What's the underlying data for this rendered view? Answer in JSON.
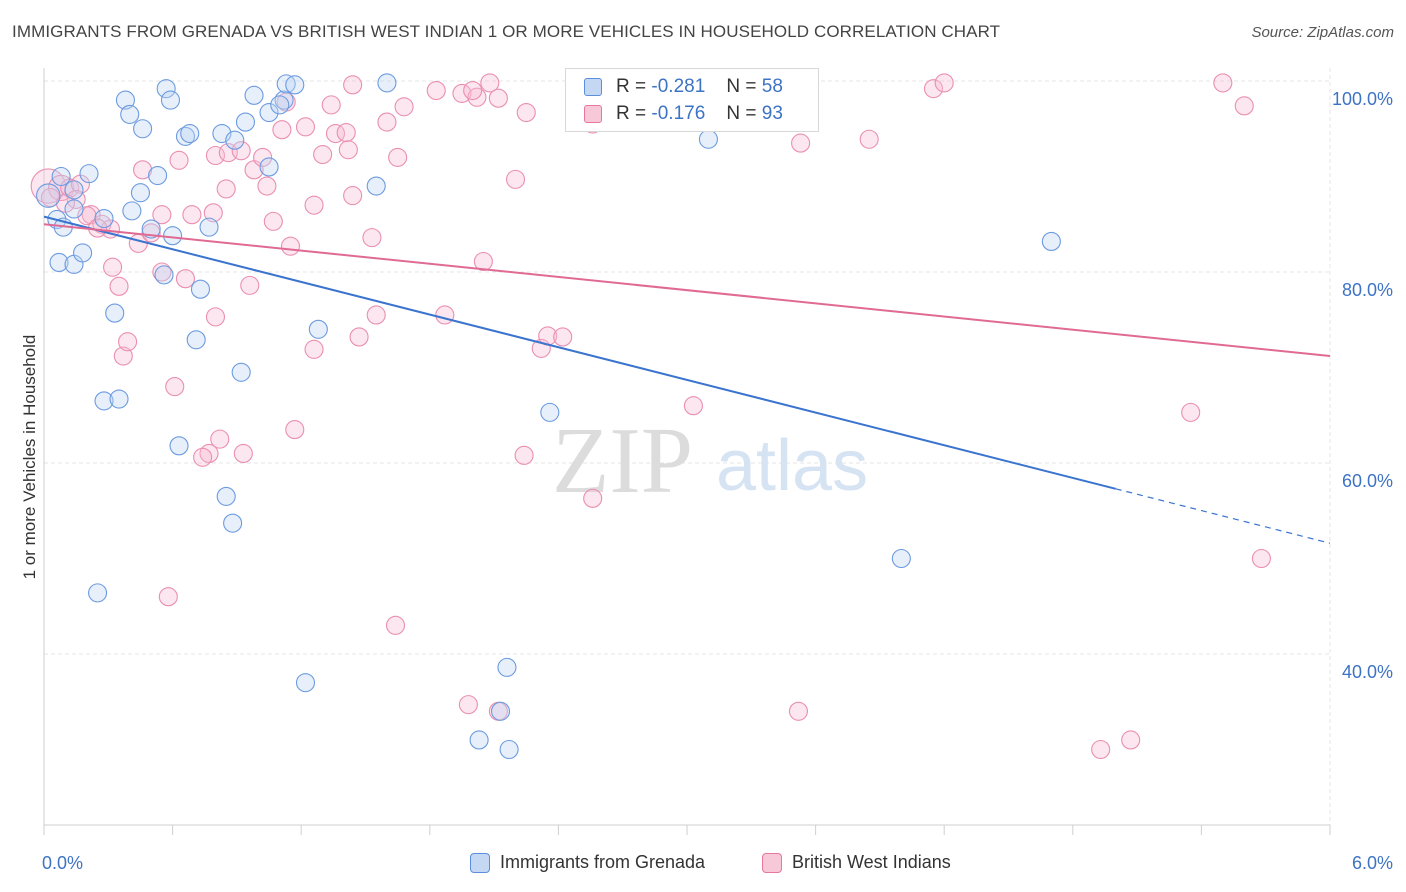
{
  "title": "IMMIGRANTS FROM GRENADA VS BRITISH WEST INDIAN 1 OR MORE VEHICLES IN HOUSEHOLD CORRELATION CHART",
  "source": "Source: ZipAtlas.com",
  "watermark": {
    "zip": "ZIP",
    "atlas": "atlas"
  },
  "stats": [
    {
      "r_label": "R =",
      "r_value": "-0.281",
      "n_label": "N =",
      "n_value": "58"
    },
    {
      "r_label": "R =",
      "r_value": "-0.176",
      "n_label": "N =",
      "n_value": "93"
    }
  ],
  "colors": {
    "blue": "#5b8fdd",
    "blue_fill": "#c5d8f3",
    "blue_line": "#3a74cf",
    "pink": "#e8779f",
    "pink_fill": "#f7c8d8",
    "pink_line": "#e06a94",
    "tick": "#3d73c4"
  },
  "chart_data": {
    "type": "scatter",
    "xlabel": "",
    "ylabel": "1 or more Vehicles in Household",
    "x_range": [
      0.0,
      6.0
    ],
    "y_range": [
      22,
      102
    ],
    "x_tick_labels": [
      "0.0%",
      "6.0%"
    ],
    "y_ticks": [
      100,
      80,
      60,
      40
    ],
    "y_tick_labels": [
      "100.0%",
      "80.0%",
      "60.0%",
      "40.0%"
    ],
    "grid": true,
    "legend_position": "bottom-center",
    "series": [
      {
        "name": "Immigrants from Grenada",
        "color": "#5b8fdd",
        "trend": {
          "x0": 0.0,
          "y0": 85.8,
          "x1": 5.0,
          "y1": 57.3,
          "dash_to_x": 6.0,
          "dash_to_y": 51.6
        },
        "points": [
          [
            0.02,
            88.0,
            1.3
          ],
          [
            0.06,
            85.5,
            1.0
          ],
          [
            0.09,
            84.7,
            1.0
          ],
          [
            0.14,
            86.6,
            1.0
          ],
          [
            0.08,
            90.0,
            1.0
          ],
          [
            0.14,
            88.6,
            1.0
          ],
          [
            0.21,
            90.3,
            1.0
          ],
          [
            0.07,
            81.0,
            1.0
          ],
          [
            0.14,
            80.8,
            1.0
          ],
          [
            0.18,
            82.0,
            1.0
          ],
          [
            0.28,
            85.6,
            1.0
          ],
          [
            0.38,
            98.0,
            1.0
          ],
          [
            0.4,
            96.5,
            1.0
          ],
          [
            0.46,
            95.0,
            1.0
          ],
          [
            0.57,
            99.2,
            1.0
          ],
          [
            0.59,
            98.0,
            1.0
          ],
          [
            0.66,
            94.2,
            1.0
          ],
          [
            0.68,
            94.5,
            1.0
          ],
          [
            0.83,
            94.5,
            1.0
          ],
          [
            0.89,
            93.8,
            1.0
          ],
          [
            0.94,
            95.7,
            1.0
          ],
          [
            0.98,
            98.5,
            1.0
          ],
          [
            1.05,
            96.7,
            1.0
          ],
          [
            1.12,
            98.0,
            1.0
          ],
          [
            1.13,
            99.7,
            1.0
          ],
          [
            1.17,
            99.6,
            1.0
          ],
          [
            0.53,
            90.1,
            1.0
          ],
          [
            0.45,
            88.3,
            1.0
          ],
          [
            0.41,
            86.4,
            1.0
          ],
          [
            0.5,
            84.5,
            1.0
          ],
          [
            0.6,
            83.8,
            1.0
          ],
          [
            0.77,
            84.7,
            1.0
          ],
          [
            0.56,
            79.7,
            1.0
          ],
          [
            0.73,
            78.2,
            1.0
          ],
          [
            0.33,
            75.7,
            1.0
          ],
          [
            0.71,
            72.9,
            1.0
          ],
          [
            0.92,
            69.5,
            1.0
          ],
          [
            0.28,
            66.5,
            1.0
          ],
          [
            0.35,
            66.7,
            1.0
          ],
          [
            1.05,
            91.0,
            1.0
          ],
          [
            1.6,
            99.8,
            1.0
          ],
          [
            1.55,
            89.0,
            1.0
          ],
          [
            1.28,
            74.0,
            1.0
          ],
          [
            0.63,
            61.8,
            1.0
          ],
          [
            0.85,
            56.5,
            1.0
          ],
          [
            0.88,
            53.7,
            1.0
          ],
          [
            0.25,
            46.4,
            1.0
          ],
          [
            1.22,
            37.0,
            1.0
          ],
          [
            2.16,
            38.6,
            1.0
          ],
          [
            2.13,
            34.0,
            1.0
          ],
          [
            2.03,
            31.0,
            1.0
          ],
          [
            2.17,
            30.0,
            1.0
          ],
          [
            2.36,
            65.3,
            1.0
          ],
          [
            2.7,
            97.8,
            1.0
          ],
          [
            3.1,
            93.9,
            1.0
          ],
          [
            4.7,
            83.2,
            1.0
          ],
          [
            4.0,
            50.0,
            1.0
          ],
          [
            1.1,
            97.5,
            1.0
          ]
        ]
      },
      {
        "name": "British West Indians",
        "color": "#e8779f",
        "trend": {
          "x0": 0.0,
          "y0": 85.0,
          "x1": 6.0,
          "y1": 71.2
        },
        "points": [
          [
            0.02,
            89.0,
            1.9
          ],
          [
            0.08,
            88.8,
            1.4
          ],
          [
            0.12,
            88.8,
            1.0
          ],
          [
            0.17,
            89.2,
            1.0
          ],
          [
            0.15,
            87.6,
            1.0
          ],
          [
            0.22,
            86.0,
            1.0
          ],
          [
            0.27,
            85.0,
            1.0
          ],
          [
            0.31,
            84.5,
            1.0
          ],
          [
            0.44,
            83.0,
            1.0
          ],
          [
            0.5,
            84.1,
            1.0
          ],
          [
            0.46,
            90.7,
            1.0
          ],
          [
            0.55,
            86.0,
            1.0
          ],
          [
            0.63,
            91.7,
            1.0
          ],
          [
            0.55,
            80.0,
            1.0
          ],
          [
            0.66,
            79.3,
            1.0
          ],
          [
            0.69,
            86.0,
            1.0
          ],
          [
            0.79,
            86.2,
            1.0
          ],
          [
            0.8,
            92.2,
            1.0
          ],
          [
            0.86,
            92.5,
            1.0
          ],
          [
            0.92,
            92.7,
            1.0
          ],
          [
            0.98,
            90.7,
            1.0
          ],
          [
            1.02,
            92.0,
            1.0
          ],
          [
            1.04,
            89.0,
            1.0
          ],
          [
            1.07,
            85.3,
            1.0
          ],
          [
            1.11,
            94.9,
            1.0
          ],
          [
            1.13,
            97.8,
            1.0
          ],
          [
            1.15,
            82.7,
            1.0
          ],
          [
            1.26,
            87.0,
            1.0
          ],
          [
            1.34,
            97.5,
            1.0
          ],
          [
            1.3,
            92.3,
            1.0
          ],
          [
            1.36,
            94.5,
            1.0
          ],
          [
            1.41,
            94.6,
            1.0
          ],
          [
            1.42,
            92.8,
            1.0
          ],
          [
            1.44,
            99.6,
            1.0
          ],
          [
            1.44,
            88.0,
            1.0
          ],
          [
            1.53,
            83.6,
            1.0
          ],
          [
            1.6,
            95.7,
            1.0
          ],
          [
            1.65,
            92.0,
            1.0
          ],
          [
            1.68,
            97.3,
            1.0
          ],
          [
            1.83,
            99.0,
            1.0
          ],
          [
            1.95,
            98.7,
            1.0
          ],
          [
            2.02,
            98.3,
            1.0
          ],
          [
            2.0,
            99.0,
            1.0
          ],
          [
            2.05,
            81.1,
            1.0
          ],
          [
            2.08,
            99.8,
            1.0
          ],
          [
            2.12,
            98.2,
            1.0
          ],
          [
            2.2,
            89.7,
            1.0
          ],
          [
            2.25,
            96.7,
            1.0
          ],
          [
            2.32,
            72.0,
            1.0
          ],
          [
            2.35,
            73.3,
            1.0
          ],
          [
            2.42,
            73.2,
            1.0
          ],
          [
            2.56,
            95.5,
            1.0
          ],
          [
            2.63,
            99.5,
            1.0
          ],
          [
            3.53,
            93.5,
            1.0
          ],
          [
            3.85,
            93.9,
            1.0
          ],
          [
            4.15,
            99.2,
            1.0
          ],
          [
            4.2,
            99.8,
            1.0
          ],
          [
            5.5,
            99.8,
            1.0
          ],
          [
            5.6,
            97.4,
            1.0
          ],
          [
            0.32,
            80.5,
            1.0
          ],
          [
            0.35,
            78.5,
            1.0
          ],
          [
            0.37,
            71.2,
            1.0
          ],
          [
            0.39,
            72.7,
            1.0
          ],
          [
            0.61,
            68.0,
            1.0
          ],
          [
            0.77,
            61.0,
            1.0
          ],
          [
            0.8,
            75.3,
            1.0
          ],
          [
            0.82,
            62.5,
            1.0
          ],
          [
            0.74,
            60.6,
            1.0
          ],
          [
            0.93,
            61.0,
            1.0
          ],
          [
            0.96,
            78.6,
            1.0
          ],
          [
            1.17,
            63.5,
            1.0
          ],
          [
            1.26,
            71.9,
            1.0
          ],
          [
            1.47,
            73.2,
            1.0
          ],
          [
            1.55,
            75.5,
            1.0
          ],
          [
            1.87,
            75.5,
            1.0
          ],
          [
            2.24,
            60.8,
            1.0
          ],
          [
            2.56,
            56.3,
            1.0
          ],
          [
            3.03,
            66.0,
            1.0
          ],
          [
            5.35,
            65.3,
            1.0
          ],
          [
            5.68,
            50.0,
            1.0
          ],
          [
            0.58,
            46.0,
            1.0
          ],
          [
            1.64,
            43.0,
            1.0
          ],
          [
            1.98,
            34.7,
            1.0
          ],
          [
            2.12,
            34.0,
            1.0
          ],
          [
            3.52,
            34.0,
            1.0
          ],
          [
            4.93,
            30.0,
            1.0
          ],
          [
            5.07,
            31.0,
            1.0
          ],
          [
            0.03,
            87.8,
            1.0
          ],
          [
            0.1,
            87.2,
            1.0
          ],
          [
            0.2,
            85.9,
            1.0
          ],
          [
            0.25,
            84.6,
            1.0
          ],
          [
            0.85,
            88.7,
            1.0
          ],
          [
            1.22,
            95.2,
            1.0
          ]
        ]
      }
    ]
  },
  "legend": [
    {
      "label": "Immigrants from Grenada"
    },
    {
      "label": "British West Indians"
    }
  ]
}
